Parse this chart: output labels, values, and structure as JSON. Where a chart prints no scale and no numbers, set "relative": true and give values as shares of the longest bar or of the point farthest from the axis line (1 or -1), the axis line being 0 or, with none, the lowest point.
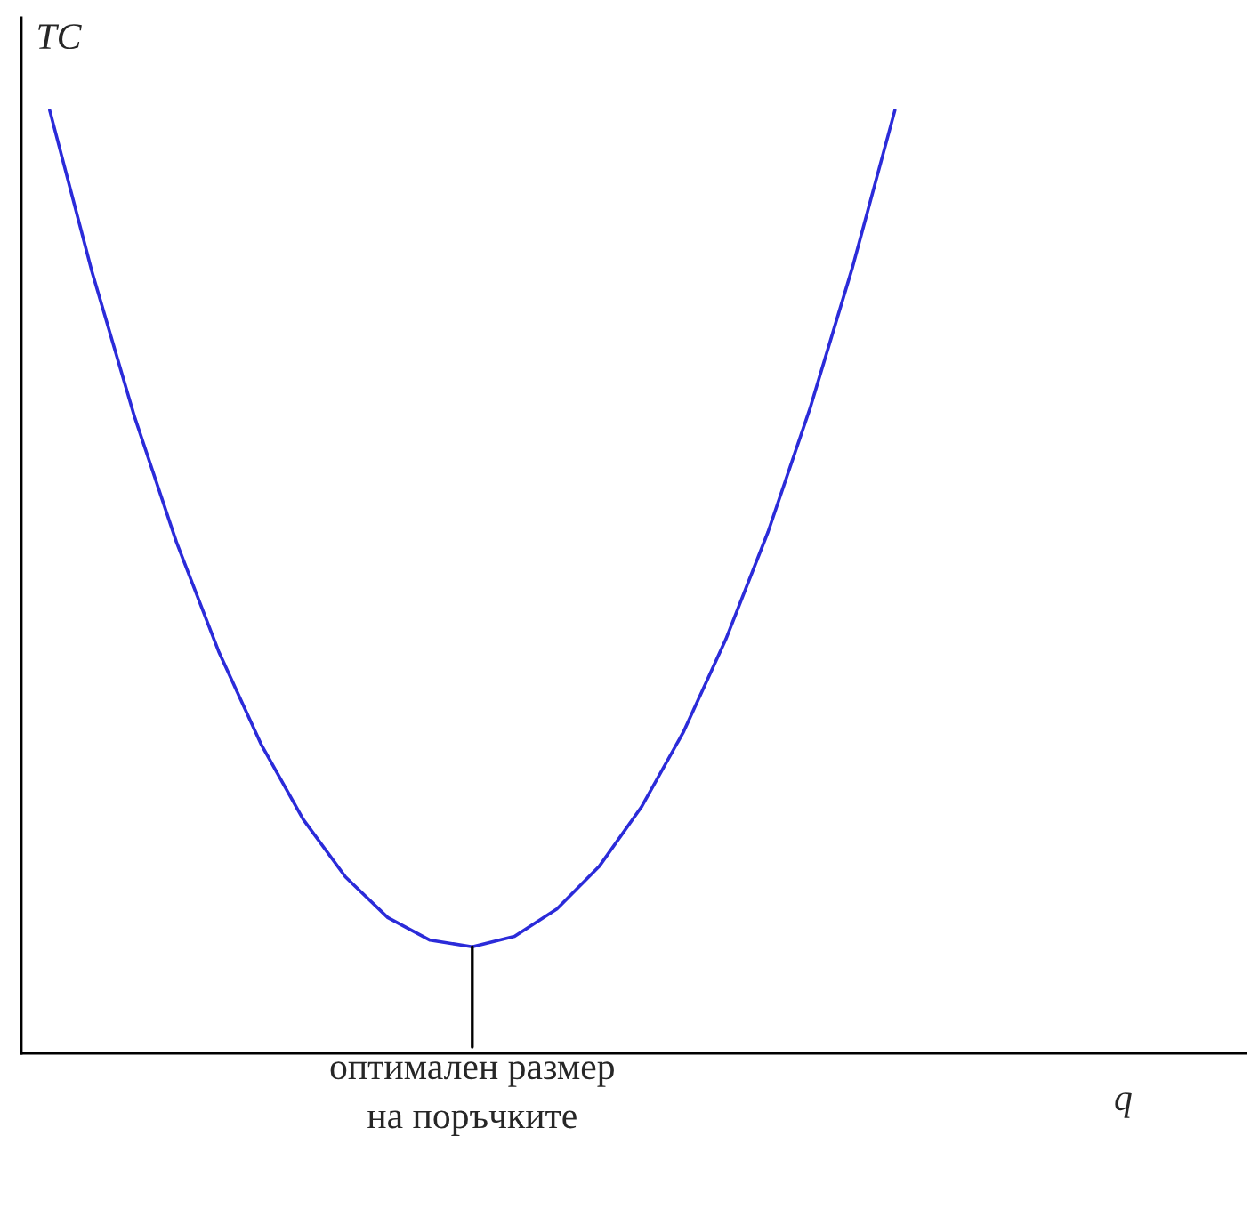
{
  "chart_data": {
    "type": "line",
    "relative": true,
    "ylabel": "TC",
    "categories": [
      null,
      null,
      null,
      null,
      null,
      null,
      null,
      null,
      null,
      null,
      null,
      null,
      null,
      null,
      null,
      null,
      null,
      null,
      null,
      null,
      null
    ],
    "series": [
      {
        "color": "#2b2bd9",
        "values": [
          1.0,
          0.829,
          0.676,
          0.542,
          0.426,
          0.328,
          0.248,
          0.187,
          0.144,
          0.12,
          0.113,
          0.124,
          0.153,
          0.198,
          0.261,
          0.341,
          0.439,
          0.553,
          0.685,
          0.834,
          1.0
        ]
      }
    ],
    "annotations": [
      {
        "text": "оптимален размер\nна поръчките",
        "y": 0.113
      },
      "q"
    ],
    "legend": false,
    "marker": "none",
    "line_style": "solid"
  }
}
